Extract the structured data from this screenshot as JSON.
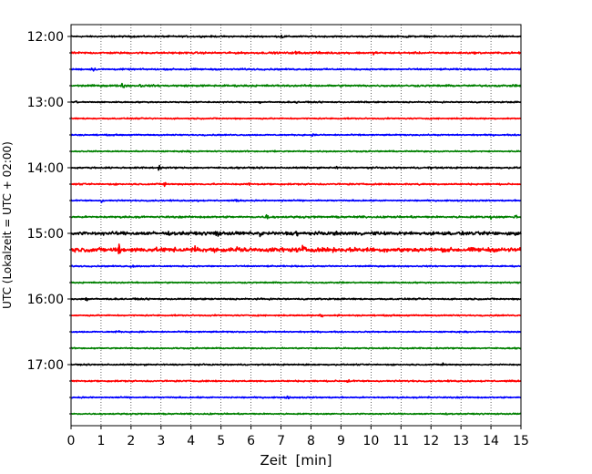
{
  "chart_data": {
    "type": "line",
    "title": "",
    "xlabel": "Zeit  [min]",
    "ylabel": "UTC (Lokalzeit = UTC + 02:00)",
    "xlim": [
      0,
      15
    ],
    "xticks": [
      "0",
      "1",
      "2",
      "3",
      "4",
      "5",
      "6",
      "7",
      "8",
      "9",
      "10",
      "11",
      "12",
      "13",
      "14",
      "15"
    ],
    "x_grid": true,
    "y_hour_labels": [
      "12:00",
      "13:00",
      "14:00",
      "15:00",
      "16:00",
      "17:00"
    ],
    "trace_interval_minutes": 15,
    "first_trace_utc": "12:00",
    "trace_colors": [
      "#000000",
      "#ff0000",
      "#0000ff",
      "#008000"
    ],
    "traces": [
      {
        "start": "12:00",
        "color": "#000000",
        "events_min": [
          7.0,
          11.2
        ],
        "max_amplitude": 0.25
      },
      {
        "start": "12:15",
        "color": "#ff0000",
        "events_min": [
          7.5,
          8.3,
          10.1
        ],
        "max_amplitude": 0.3
      },
      {
        "start": "12:30",
        "color": "#0000ff",
        "events_min": [
          0.7,
          3.8,
          5.6
        ],
        "max_amplitude": 0.25
      },
      {
        "start": "12:45",
        "color": "#008000",
        "events_min": [
          1.7,
          2.3
        ],
        "max_amplitude": 0.3
      },
      {
        "start": "13:00",
        "color": "#000000",
        "events_min": [
          0.1,
          6.3,
          7.5,
          9.6
        ],
        "max_amplitude": 0.2
      },
      {
        "start": "13:15",
        "color": "#ff0000",
        "events_min": [],
        "max_amplitude": 0.1
      },
      {
        "start": "13:30",
        "color": "#0000ff",
        "events_min": [
          8.0,
          14.1
        ],
        "max_amplitude": 0.15
      },
      {
        "start": "13:45",
        "color": "#008000",
        "events_min": [
          6.8
        ],
        "max_amplitude": 0.15
      },
      {
        "start": "14:00",
        "color": "#000000",
        "events_min": [
          2.9,
          8.8,
          11.9
        ],
        "max_amplitude": 0.25
      },
      {
        "start": "14:15",
        "color": "#ff0000",
        "events_min": [
          3.1,
          5.9,
          8.0,
          11.6
        ],
        "max_amplitude": 0.25
      },
      {
        "start": "14:30",
        "color": "#0000ff",
        "events_min": [
          1.0,
          4.2,
          5.5,
          7.0
        ],
        "max_amplitude": 0.2
      },
      {
        "start": "14:45",
        "color": "#008000",
        "events_min": [
          6.5,
          14.0,
          14.8
        ],
        "max_amplitude": 0.3
      },
      {
        "start": "15:00",
        "color": "#000000",
        "events_min": [
          4.8,
          6.3,
          7.5,
          14.8
        ],
        "max_amplitude": 0.55
      },
      {
        "start": "15:15",
        "color": "#ff0000",
        "events_min": [
          1.6,
          4.1,
          5.5,
          7.7
        ],
        "max_amplitude": 0.7
      },
      {
        "start": "15:30",
        "color": "#0000ff",
        "events_min": [
          2.0
        ],
        "max_amplitude": 0.2
      },
      {
        "start": "15:45",
        "color": "#008000",
        "events_min": [],
        "max_amplitude": 0.1
      },
      {
        "start": "16:00",
        "color": "#000000",
        "events_min": [
          0.5
        ],
        "max_amplitude": 0.25
      },
      {
        "start": "16:15",
        "color": "#ff0000",
        "events_min": [
          8.3,
          8.9
        ],
        "max_amplitude": 0.2
      },
      {
        "start": "16:30",
        "color": "#0000ff",
        "events_min": [
          1.5
        ],
        "max_amplitude": 0.2
      },
      {
        "start": "16:45",
        "color": "#008000",
        "events_min": [
          11.1
        ],
        "max_amplitude": 0.15
      },
      {
        "start": "17:00",
        "color": "#000000",
        "events_min": [
          12.4
        ],
        "max_amplitude": 0.2
      },
      {
        "start": "17:15",
        "color": "#ff0000",
        "events_min": [
          9.2
        ],
        "max_amplitude": 0.25
      },
      {
        "start": "17:30",
        "color": "#0000ff",
        "events_min": [
          7.2,
          11.9
        ],
        "max_amplitude": 0.2
      },
      {
        "start": "17:45",
        "color": "#008000",
        "events_min": [
          4.6
        ],
        "max_amplitude": 0.1
      }
    ]
  }
}
